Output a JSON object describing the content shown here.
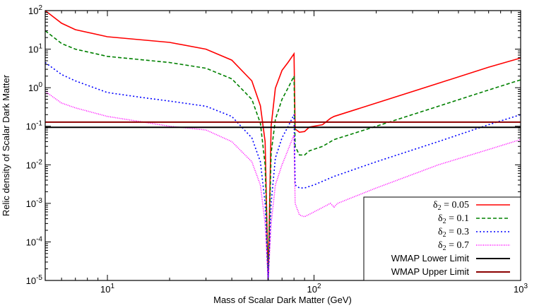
{
  "chart_data": {
    "type": "line",
    "xlabel": "Mass of Scalar Dark Matter (GeV)",
    "ylabel": "Relic density of Scalar Dark Matter",
    "xscale": "log",
    "yscale": "log",
    "xlim": [
      5,
      1000
    ],
    "ylim": [
      1e-05,
      100
    ],
    "x_tick_labels": [
      {
        "v": 10,
        "base": "10",
        "exp": "1"
      },
      {
        "v": 100,
        "base": "10",
        "exp": "2"
      },
      {
        "v": 1000,
        "base": "10",
        "exp": "3"
      }
    ],
    "y_tick_labels": [
      {
        "v": 1e-05,
        "base": "10",
        "exp": "-5"
      },
      {
        "v": 0.0001,
        "base": "10",
        "exp": "-4"
      },
      {
        "v": 0.001,
        "base": "10",
        "exp": "-3"
      },
      {
        "v": 0.01,
        "base": "10",
        "exp": "-2"
      },
      {
        "v": 0.1,
        "base": "10",
        "exp": "-1"
      },
      {
        "v": 1,
        "base": "10",
        "exp": "0"
      },
      {
        "v": 10,
        "base": "10",
        "exp": "1"
      },
      {
        "v": 100,
        "base": "10",
        "exp": "2"
      }
    ],
    "grid": false,
    "legend_position": "bottom-right",
    "series": [
      {
        "name": "δ2 = 0.05",
        "label_sym": "δ",
        "label_sub": "2",
        "label_rest": " = 0.05",
        "color": "#ff0000",
        "dash": "solid",
        "x": [
          5,
          6,
          7,
          10,
          20,
          30,
          40,
          50,
          55,
          58,
          60,
          62,
          65,
          70,
          75,
          80,
          81,
          85,
          90,
          95,
          110,
          120,
          125,
          200,
          400,
          700,
          1000
        ],
        "y": [
          100,
          47,
          32,
          21,
          15,
          10,
          5.2,
          1.5,
          0.34,
          0.04,
          1e-05,
          0.1,
          0.97,
          2.8,
          4.6,
          7.6,
          0.085,
          0.07,
          0.073,
          0.095,
          0.11,
          0.16,
          0.18,
          0.4,
          1.3,
          3.4,
          5.9
        ]
      },
      {
        "name": "δ2 = 0.1",
        "label_sym": "δ",
        "label_sub": "2",
        "label_rest": " = 0.1",
        "color": "#008000",
        "dash": "dashed",
        "x": [
          5,
          6,
          7,
          10,
          20,
          30,
          40,
          50,
          55,
          58,
          60,
          62,
          65,
          70,
          75,
          80,
          81,
          85,
          90,
          95,
          110,
          125,
          200,
          400,
          700,
          1000
        ],
        "y": [
          30,
          14,
          10,
          6.5,
          4.5,
          3.2,
          1.7,
          0.5,
          0.12,
          0.01,
          1e-05,
          0.02,
          0.15,
          0.5,
          1.0,
          2.0,
          0.03,
          0.018,
          0.018,
          0.023,
          0.03,
          0.045,
          0.1,
          0.33,
          0.87,
          1.6
        ]
      },
      {
        "name": "δ2 = 0.3",
        "label_sym": "δ",
        "label_sub": "2",
        "label_rest": " = 0.3",
        "color": "#0000ff",
        "dash": "dotted",
        "x": [
          5,
          6,
          7,
          10,
          15,
          20,
          30,
          40,
          50,
          55,
          58,
          60,
          62,
          65,
          70,
          75,
          80,
          81,
          85,
          90,
          100,
          125,
          200,
          400,
          700,
          1000
        ],
        "y": [
          4.5,
          2.2,
          1.5,
          0.75,
          0.55,
          0.45,
          0.33,
          0.18,
          0.05,
          0.012,
          0.001,
          1e-05,
          0.001,
          0.015,
          0.05,
          0.1,
          0.2,
          0.003,
          0.0025,
          0.0025,
          0.003,
          0.005,
          0.012,
          0.04,
          0.11,
          0.2
        ]
      },
      {
        "name": "δ2 = 0.7",
        "label_sym": "δ",
        "label_sub": "2",
        "label_rest": " = 0.7",
        "color": "#ff00ff",
        "dash": "dotted-fine",
        "x": [
          5,
          6,
          7,
          10,
          20,
          30,
          40,
          50,
          55,
          58,
          60,
          62,
          65,
          70,
          75,
          80,
          81,
          85,
          90,
          100,
          120,
          125,
          130,
          200,
          400,
          700,
          1000
        ],
        "y": [
          0.8,
          0.4,
          0.3,
          0.18,
          0.1,
          0.08,
          0.04,
          0.012,
          0.003,
          0.0003,
          1e-05,
          0.0003,
          0.003,
          0.01,
          0.025,
          0.06,
          0.001,
          0.0005,
          0.00045,
          0.0006,
          0.001,
          0.0008,
          0.001,
          0.0025,
          0.01,
          0.025,
          0.045
        ]
      },
      {
        "name": "WMAP Lower Limit",
        "color": "#000000",
        "dash": "solid",
        "x": [
          5,
          1000
        ],
        "y": [
          0.094,
          0.094
        ]
      },
      {
        "name": "WMAP Upper Limit",
        "color": "#8b0000",
        "dash": "solid",
        "x": [
          5,
          1000
        ],
        "y": [
          0.128,
          0.128
        ]
      }
    ]
  }
}
